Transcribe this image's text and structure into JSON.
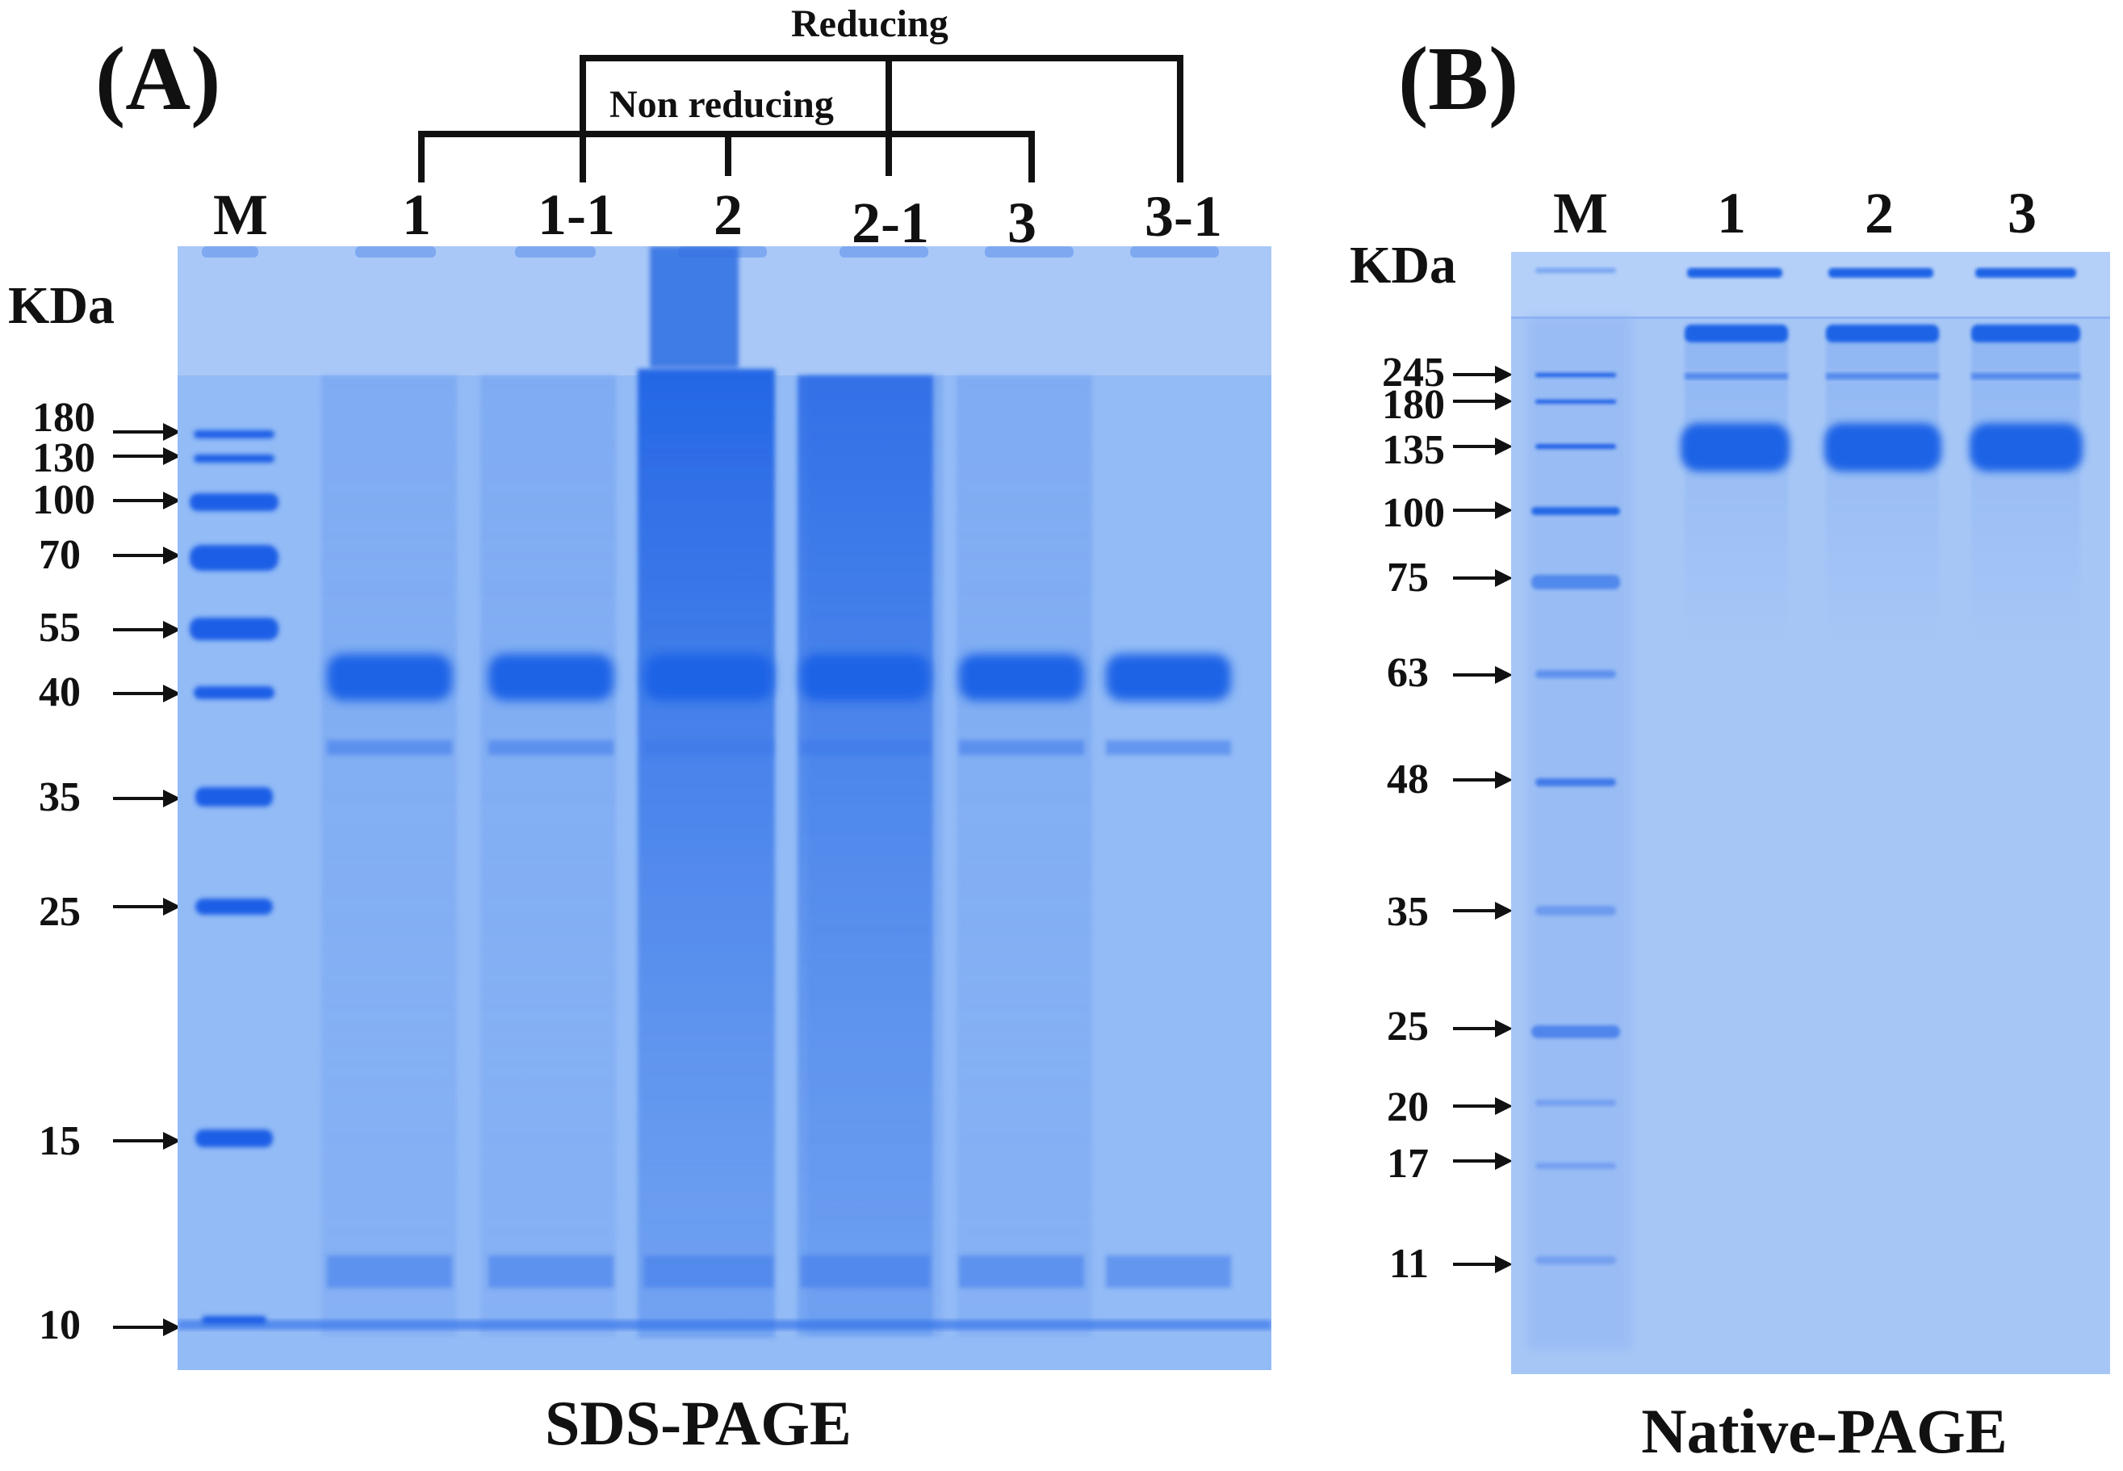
{
  "panel_a": {
    "letter": "(A)",
    "group_top": "Reducing",
    "group_bottom": "Non reducing",
    "unit": "KDa",
    "caption": "SDS-PAGE",
    "lanes": [
      "M",
      "1",
      "1-1",
      "2",
      "2-1",
      "3",
      "3-1"
    ],
    "markers": [
      "180",
      "130",
      "100",
      "70",
      "55",
      "40",
      "35",
      "25",
      "15",
      "10"
    ]
  },
  "panel_b": {
    "letter": "(B)",
    "unit": "KDa",
    "caption": "Native-PAGE",
    "lanes": [
      "M",
      "1",
      "2",
      "3"
    ],
    "markers": [
      "245",
      "180",
      "135",
      "100",
      "75",
      "63",
      "48",
      "35",
      "25",
      "20",
      "17",
      "11"
    ]
  },
  "colors": {
    "gel_background": "#8fb8f6",
    "stain": "#1f63e6",
    "text": "#111111"
  }
}
